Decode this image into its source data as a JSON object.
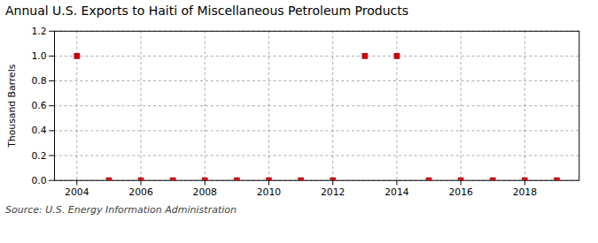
{
  "chart_data": {
    "type": "scatter",
    "title": "Annual U.S. Exports to Haiti of Miscellaneous Petroleum Products",
    "ylabel": "Thousand Barrels",
    "annotations": [
      "Source: U.S. Energy Information Administration"
    ],
    "x": [
      2004,
      2005,
      2006,
      2007,
      2008,
      2009,
      2010,
      2011,
      2012,
      2013,
      2014,
      2015,
      2016,
      2017,
      2018,
      2019
    ],
    "values": [
      1.0,
      0.0,
      0.0,
      0.0,
      0.0,
      0.0,
      0.0,
      0.0,
      0.0,
      1.0,
      1.0,
      0.0,
      0.0,
      0.0,
      0.0,
      0.0
    ],
    "color": "#cc0000",
    "marker": "square",
    "xlim": [
      2003.3,
      2019.7
    ],
    "xticks": [
      2004,
      2006,
      2008,
      2010,
      2012,
      2014,
      2016,
      2018
    ],
    "ylim": [
      0.0,
      1.2
    ],
    "yticks": [
      {
        "value": 0,
        "label": "0.0"
      },
      0.2,
      0.4,
      0.6,
      0.8,
      {
        "value": 1,
        "label": "1.0"
      },
      1.2
    ],
    "grid": true
  }
}
